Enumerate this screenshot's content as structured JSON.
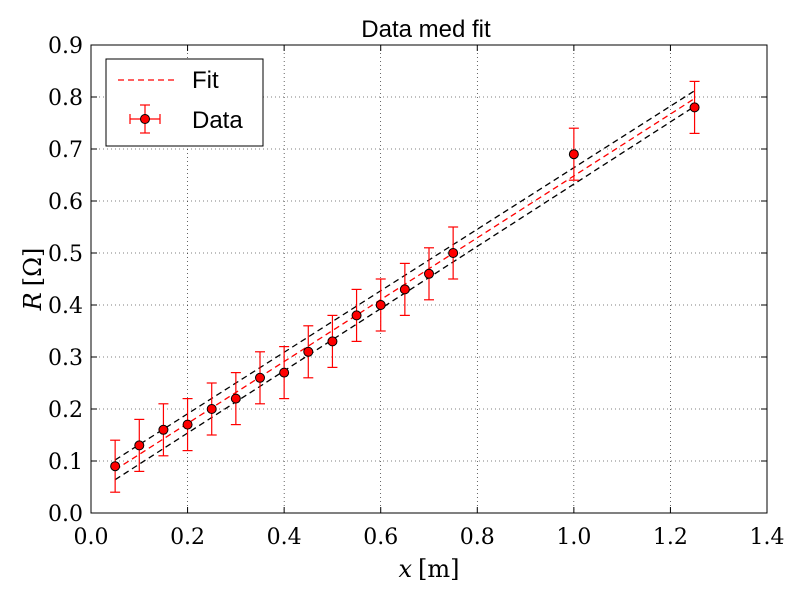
{
  "chart_data": {
    "type": "scatter",
    "title": "Data med fit",
    "xlabel_var": "x",
    "xlabel_unit": "[m]",
    "ylabel_var": "R",
    "ylabel_unit": "[Ω]",
    "xlim": [
      0.0,
      1.4
    ],
    "ylim": [
      0.0,
      0.9
    ],
    "xticks": [
      0.0,
      0.2,
      0.4,
      0.6,
      0.8,
      1.0,
      1.2,
      1.4
    ],
    "yticks": [
      0.0,
      0.1,
      0.2,
      0.3,
      0.4,
      0.5,
      0.6,
      0.7,
      0.8,
      0.9
    ],
    "xtick_labels": [
      "0.0",
      "0.2",
      "0.4",
      "0.6",
      "0.8",
      "1.0",
      "1.2",
      "1.4"
    ],
    "ytick_labels": [
      "0.0",
      "0.1",
      "0.2",
      "0.3",
      "0.4",
      "0.5",
      "0.6",
      "0.7",
      "0.8",
      "0.9"
    ],
    "grid": true,
    "legend_position": "top-left",
    "series": [
      {
        "name": "Data",
        "kind": "errorbar",
        "color": "#ff0000",
        "x": [
          0.05,
          0.1,
          0.15,
          0.2,
          0.25,
          0.3,
          0.35,
          0.4,
          0.45,
          0.5,
          0.55,
          0.6,
          0.65,
          0.7,
          0.75,
          1.0,
          1.25
        ],
        "y": [
          0.09,
          0.13,
          0.16,
          0.17,
          0.2,
          0.22,
          0.26,
          0.27,
          0.31,
          0.33,
          0.38,
          0.4,
          0.43,
          0.46,
          0.5,
          0.69,
          0.78
        ],
        "yerr": 0.05
      },
      {
        "name": "Fit",
        "kind": "line",
        "color": "#ff0000",
        "dashed": true,
        "x": [
          0.05,
          1.25
        ],
        "y": [
          0.083,
          0.797
        ]
      },
      {
        "kind": "line",
        "color": "#000000",
        "dashed": true,
        "x": [
          0.05,
          1.25
        ],
        "y": [
          0.102,
          0.812
        ]
      },
      {
        "kind": "line",
        "color": "#000000",
        "dashed": true,
        "x": [
          0.05,
          1.25
        ],
        "y": [
          0.064,
          0.782
        ]
      }
    ]
  }
}
